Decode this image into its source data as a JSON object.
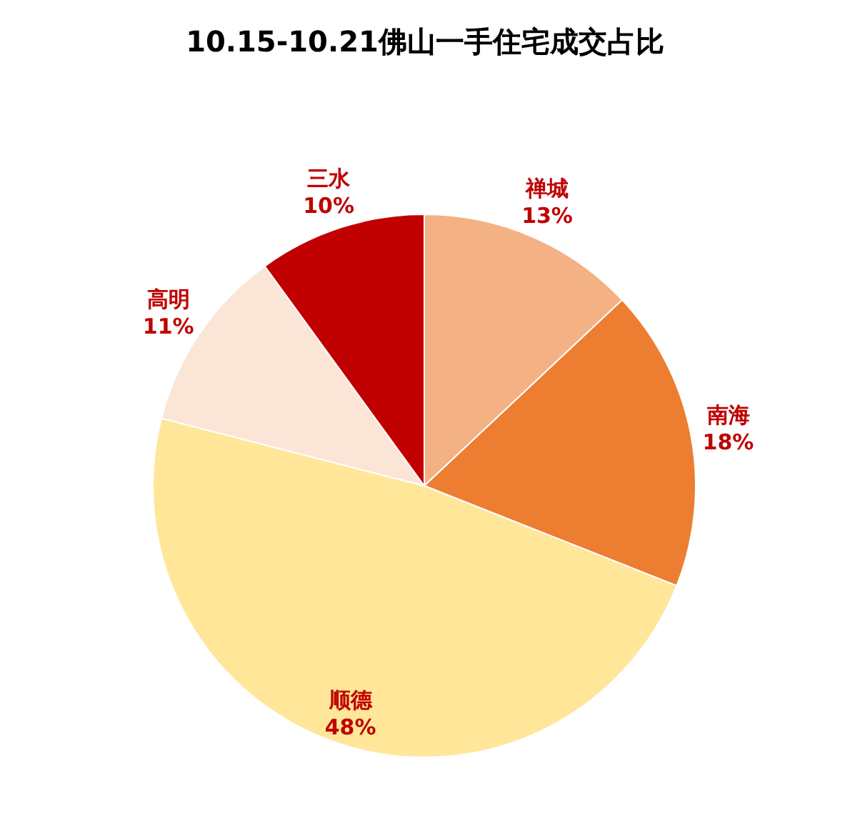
{
  "chart_data": {
    "type": "pie",
    "title": "10.15-10.21佛山一手住宅成交占比",
    "categories": [
      "禅城",
      "南海",
      "顺德",
      "高明",
      "三水"
    ],
    "values": [
      13,
      18,
      48,
      11,
      10
    ],
    "colors": [
      "#f4b183",
      "#ed7d31",
      "#ffe699",
      "#fbe5d6",
      "#c00000"
    ],
    "value_labels": [
      "13%",
      "18%",
      "48%",
      "11%",
      "10%"
    ]
  }
}
